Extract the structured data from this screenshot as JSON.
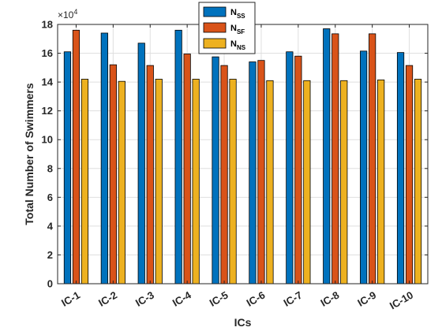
{
  "chart_data": {
    "type": "bar",
    "categories": [
      "IC-1",
      "IC-2",
      "IC-3",
      "IC-4",
      "IC-5",
      "IC-6",
      "IC-7",
      "IC-8",
      "IC-9",
      "IC-10"
    ],
    "series": [
      {
        "name": "N",
        "subscript": "SS",
        "color": "#0072BD",
        "values": [
          161000,
          174000,
          167000,
          176000,
          157500,
          154000,
          161000,
          177000,
          161500,
          160500
        ]
      },
      {
        "name": "N",
        "subscript": "SF",
        "color": "#D95319",
        "values": [
          176000,
          152000,
          151500,
          159500,
          151500,
          155000,
          158000,
          173500,
          173500,
          151500
        ]
      },
      {
        "name": "N",
        "subscript": "NS",
        "color": "#EDB120",
        "values": [
          142000,
          140500,
          142000,
          142000,
          142000,
          141000,
          141000,
          141000,
          141500,
          142000
        ]
      }
    ],
    "xlabel": "ICs",
    "ylabel": "Total Number of Swimmers",
    "ylim": [
      0,
      180000
    ],
    "y_ticks": [
      0,
      2,
      4,
      6,
      8,
      10,
      12,
      14,
      16,
      18
    ],
    "y_tick_multiplier": 10000,
    "exponent_label": "×10",
    "exponent": "4",
    "grid": true,
    "legend_position": "top-center"
  }
}
